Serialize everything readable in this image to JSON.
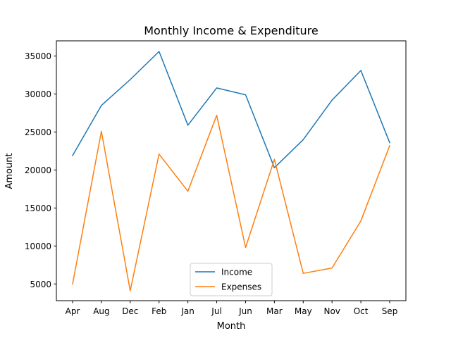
{
  "chart_data": {
    "type": "line",
    "title": "Monthly Income & Expenditure",
    "xlabel": "Month",
    "ylabel": "Amount",
    "categories": [
      "Apr",
      "Aug",
      "Dec",
      "Feb",
      "Jan",
      "Jul",
      "Jun",
      "Mar",
      "May",
      "Nov",
      "Oct",
      "Sep"
    ],
    "ylim": [
      2800,
      37000
    ],
    "yticks": [
      5000,
      10000,
      15000,
      20000,
      25000,
      30000,
      35000
    ],
    "grid": false,
    "legend_position": "bottom-center",
    "series": [
      {
        "name": "Income",
        "color": "#1f77b4",
        "values": [
          21900,
          28500,
          31900,
          35600,
          25900,
          30800,
          29900,
          20300,
          24000,
          29200,
          33100,
          23600
        ]
      },
      {
        "name": "Expenses",
        "color": "#ff7f0e",
        "values": [
          5000,
          25100,
          4100,
          22100,
          17200,
          27200,
          9800,
          21400,
          6400,
          7100,
          13300,
          23200
        ]
      }
    ]
  }
}
